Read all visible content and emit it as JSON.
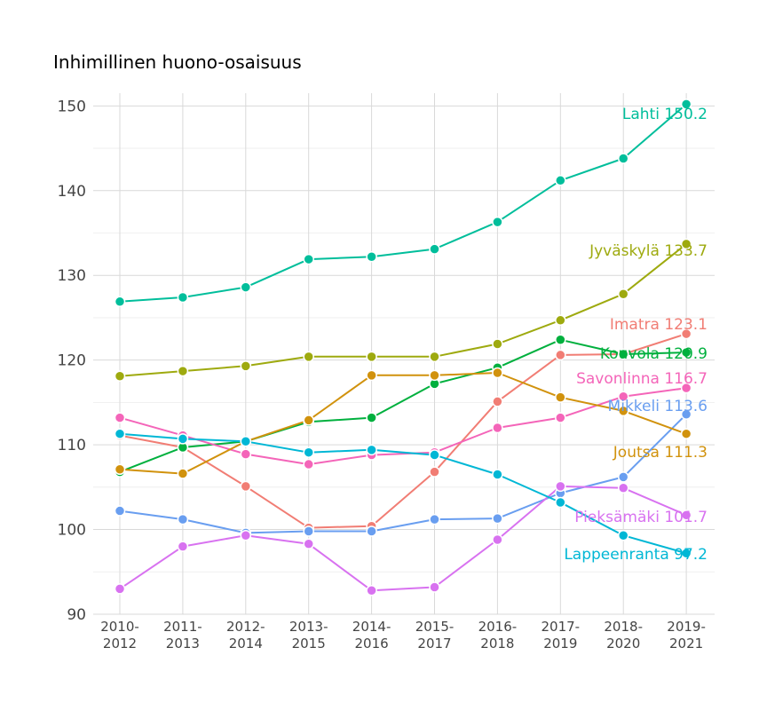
{
  "chart_data": {
    "type": "line",
    "title": "Inhimillinen huono-osaisuus",
    "xlabel": "",
    "ylabel": "",
    "ylim": [
      90,
      151.5
    ],
    "yticks": [
      90,
      100,
      110,
      120,
      130,
      140,
      150
    ],
    "grid": true,
    "legend": "none (direct labels at line ends)",
    "categories": [
      [
        "2010-",
        "2012"
      ],
      [
        "2011-",
        "2013"
      ],
      [
        "2012-",
        "2014"
      ],
      [
        "2013-",
        "2015"
      ],
      [
        "2014-",
        "2016"
      ],
      [
        "2015-",
        "2017"
      ],
      [
        "2016-",
        "2018"
      ],
      [
        "2017-",
        "2019"
      ],
      [
        "2018-",
        "2020"
      ],
      [
        "2019-",
        "2021"
      ]
    ],
    "series": [
      {
        "name": "Lahti",
        "label": "Lahti 150.2",
        "color": "#00BE9B",
        "values": [
          126.9,
          127.4,
          128.6,
          131.9,
          132.2,
          133.1,
          136.3,
          141.2,
          143.8,
          150.2
        ]
      },
      {
        "name": "Jyväskylä",
        "label": "Jyväskylä 133.7",
        "color": "#9EAA0F",
        "values": [
          118.1,
          118.7,
          119.3,
          120.4,
          120.4,
          120.4,
          121.9,
          124.7,
          127.8,
          133.7
        ]
      },
      {
        "name": "Imatra",
        "label": "Imatra 123.1",
        "color": "#F17D74",
        "values": [
          111.1,
          109.7,
          105.1,
          100.2,
          100.4,
          106.8,
          115.1,
          120.6,
          120.7,
          123.1
        ]
      },
      {
        "name": "Kouvola",
        "label": "Kouvola 120.9",
        "color": "#00B03E",
        "values": [
          106.8,
          109.7,
          110.4,
          112.7,
          113.2,
          117.2,
          119.1,
          122.4,
          120.7,
          120.9
        ]
      },
      {
        "name": "Savonlinna",
        "label": "Savonlinna 116.7",
        "color": "#F465B9",
        "values": [
          113.2,
          111.1,
          108.9,
          107.7,
          108.8,
          109.1,
          112.0,
          113.2,
          115.7,
          116.7
        ]
      },
      {
        "name": "Mikkeli",
        "label": "Mikkeli 113.6",
        "color": "#699EF0",
        "values": [
          102.2,
          101.2,
          99.6,
          99.8,
          99.8,
          101.2,
          101.3,
          104.3,
          106.2,
          113.6
        ]
      },
      {
        "name": "Joutsa",
        "label": "Joutsa 111.3",
        "color": "#D1920D",
        "values": [
          107.1,
          106.6,
          110.4,
          112.9,
          118.2,
          118.2,
          118.5,
          115.6,
          114.0,
          111.3
        ]
      },
      {
        "name": "Pieksämäki",
        "label": "Pieksämäki 101.7",
        "color": "#D872F0",
        "values": [
          93.0,
          98.0,
          99.3,
          98.3,
          92.8,
          93.2,
          98.8,
          105.1,
          104.9,
          101.7
        ]
      },
      {
        "name": "Lappeenranta",
        "label": "Lappeenranta 97.2",
        "color": "#00B7D5",
        "values": [
          111.3,
          110.7,
          110.4,
          109.1,
          109.4,
          108.8,
          106.5,
          103.2,
          99.3,
          97.2
        ]
      }
    ]
  }
}
